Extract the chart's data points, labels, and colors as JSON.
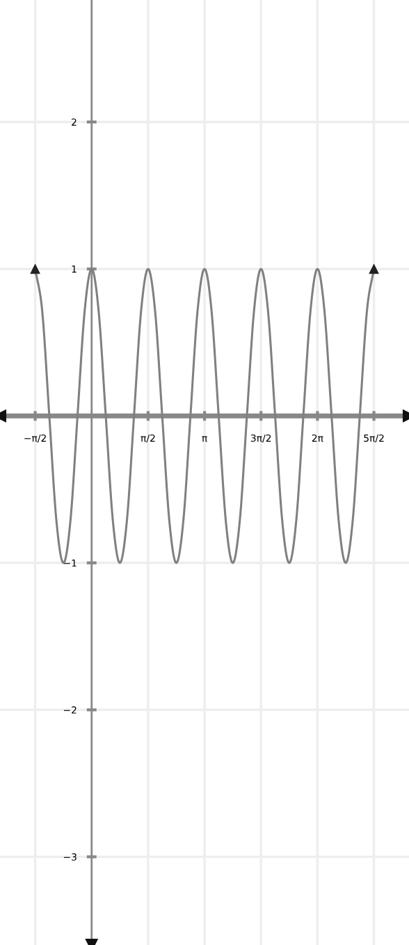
{
  "chart_data": {
    "type": "line",
    "xlim": [
      -2.55,
      8.83
    ],
    "ylim": [
      -3.6,
      2.83
    ],
    "xticks": [
      {
        "value": -1.571,
        "label": "−π/2"
      },
      {
        "value": 1.571,
        "label": "π/2"
      },
      {
        "value": 3.142,
        "label": "π"
      },
      {
        "value": 4.712,
        "label": "3π/2"
      },
      {
        "value": 6.283,
        "label": "2π"
      },
      {
        "value": 7.854,
        "label": "5π/2"
      }
    ],
    "yticks": [
      {
        "value": 2,
        "label": "2"
      },
      {
        "value": 1,
        "label": "1"
      },
      {
        "value": -1,
        "label": "−1"
      },
      {
        "value": -2,
        "label": "−2"
      },
      {
        "value": -3,
        "label": "−3"
      }
    ],
    "grid": true,
    "marker": "none",
    "line_style": "solid",
    "series": [
      {
        "color": "#808080",
        "x": [
          -1.571,
          -1.374,
          -1.178,
          -0.982,
          -0.785,
          -0.589,
          -0.393,
          -0.196,
          0,
          0.196,
          0.393,
          0.589,
          0.785,
          0.982,
          1.178,
          1.374,
          1.571,
          1.767,
          1.963,
          2.16,
          2.356,
          2.553,
          2.749,
          2.945,
          3.142,
          3.338,
          3.534,
          3.731,
          3.927,
          4.123,
          4.32,
          4.516,
          4.712,
          4.909,
          5.105,
          5.301,
          5.498,
          5.694,
          5.89,
          6.087,
          6.283,
          6.479,
          6.676,
          6.872,
          7.069,
          7.265,
          7.461,
          7.658,
          7.854
        ],
        "values": [
          1,
          0.71,
          0,
          -0.71,
          -1,
          -0.71,
          0,
          0.71,
          1,
          0.71,
          0,
          -0.71,
          -1,
          -0.71,
          0,
          0.71,
          1,
          0.71,
          0,
          -0.71,
          -1,
          -0.71,
          0,
          0.71,
          1,
          0.71,
          0,
          -0.71,
          -1,
          -0.71,
          0,
          0.71,
          1,
          0.71,
          0,
          -0.71,
          -1,
          -0.71,
          0,
          0.71,
          1,
          0.71,
          0,
          -0.71,
          -1,
          -0.71,
          0,
          0.71,
          1
        ]
      }
    ]
  }
}
